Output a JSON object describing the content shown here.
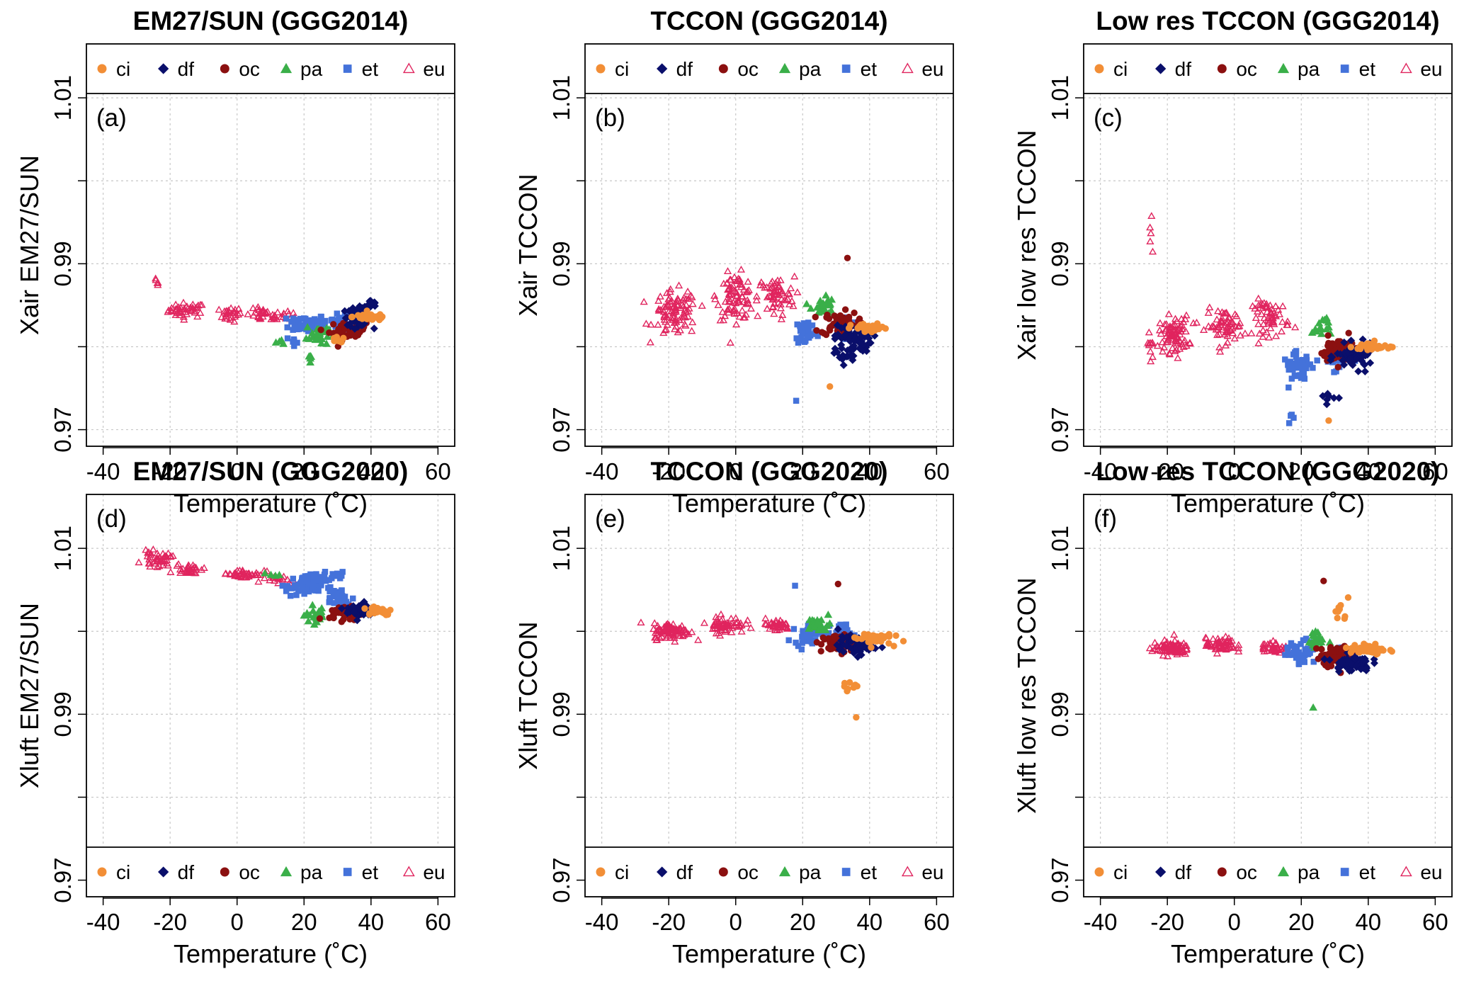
{
  "figure": {
    "legend_entries": [
      {
        "key": "ci",
        "label": "ci",
        "marker": "circle",
        "color": "#F28E36"
      },
      {
        "key": "df",
        "label": "df",
        "marker": "diamond",
        "color": "#0A0F6B"
      },
      {
        "key": "oc",
        "label": "oc",
        "marker": "circle",
        "color": "#8B1010"
      },
      {
        "key": "pa",
        "label": "pa",
        "marker": "triangle",
        "color": "#3AAF49"
      },
      {
        "key": "et",
        "label": "et",
        "marker": "square",
        "color": "#4472DA"
      },
      {
        "key": "eu",
        "label": "eu",
        "marker": "triangle-open",
        "color": "#E0245E"
      }
    ]
  },
  "chart_data": [
    {
      "type": "scatter",
      "title": "EM27/SUN (GGG2014)",
      "panel_label": "(a)",
      "xlabel": "Temperature (˚C)",
      "ylabel": "Xair EM27/SUN",
      "xlim": [
        -45,
        65
      ],
      "ylim": [
        0.968,
        1.0165
      ],
      "xticks": [
        -40,
        -20,
        0,
        20,
        40,
        60
      ],
      "xtick_labels": [
        "-40",
        "-20",
        "0",
        "20",
        "40",
        "60"
      ],
      "yticks": [
        0.97,
        0.99,
        1.01
      ],
      "ytick_labels": [
        "0.97",
        "0.99",
        "1.01"
      ],
      "grid": true,
      "legend_position": "top",
      "series_clusters": {
        "eu": [
          [
            -24,
            0.9876,
            1.5,
            0.0008,
            5
          ],
          [
            -15,
            0.9844,
            5,
            0.0008,
            40
          ],
          [
            -2,
            0.9839,
            3,
            0.0008,
            25
          ],
          [
            8,
            0.9838,
            5,
            0.0007,
            30
          ],
          [
            15,
            0.9838,
            3,
            0.0006,
            10
          ]
        ],
        "et": [
          [
            21,
            0.9828,
            5,
            0.001,
            60
          ],
          [
            17,
            0.9805,
            1,
            0.0008,
            6
          ],
          [
            30,
            0.983,
            5,
            0.0008,
            25
          ]
        ],
        "pa": [
          [
            24,
            0.9815,
            3,
            0.0013,
            25
          ],
          [
            22,
            0.9785,
            1.2,
            0.0008,
            5
          ],
          [
            13,
            0.9805,
            3,
            0.0003,
            4
          ]
        ],
        "oc": [
          [
            33,
            0.9819,
            5,
            0.001,
            40
          ]
        ],
        "df": [
          [
            36,
            0.9836,
            4,
            0.001,
            50
          ],
          [
            40,
            0.985,
            2,
            0.0006,
            15
          ]
        ],
        "ci": [
          [
            40,
            0.9836,
            5,
            0.0004,
            40
          ],
          [
            30,
            0.9807,
            2,
            0.0004,
            8
          ]
        ]
      }
    },
    {
      "type": "scatter",
      "title": "TCCON (GGG2014)",
      "panel_label": "(b)",
      "xlabel": "Temperature (˚C)",
      "ylabel": "Xair TCCON",
      "xlim": [
        -45,
        65
      ],
      "ylim": [
        0.968,
        1.0165
      ],
      "xticks": [
        -40,
        -20,
        0,
        20,
        40,
        60
      ],
      "xtick_labels": [
        "-40",
        "-20",
        "0",
        "20",
        "40",
        "60"
      ],
      "yticks": [
        0.97,
        0.99,
        1.01
      ],
      "ytick_labels": [
        "0.97",
        "0.99",
        "1.01"
      ],
      "grid": true,
      "legend_position": "top",
      "series_clusters": {
        "eu": [
          [
            -18,
            0.984,
            6,
            0.0025,
            90
          ],
          [
            0,
            0.986,
            5,
            0.0025,
            80
          ],
          [
            12,
            0.986,
            5,
            0.0022,
            60
          ]
        ],
        "et": [
          [
            21,
            0.9818,
            3,
            0.0015,
            40
          ],
          [
            33,
            0.9825,
            3,
            0.001,
            20
          ],
          [
            18,
            0.9735,
            0.5,
            0.0003,
            1
          ]
        ],
        "pa": [
          [
            26,
            0.985,
            3,
            0.0012,
            25
          ]
        ],
        "oc": [
          [
            31,
            0.9828,
            5,
            0.0013,
            60
          ],
          [
            33,
            0.9908,
            0.5,
            0.0002,
            1
          ]
        ],
        "df": [
          [
            35,
            0.981,
            5,
            0.0015,
            60
          ],
          [
            33,
            0.979,
            3,
            0.001,
            20
          ]
        ],
        "ci": [
          [
            40,
            0.9822,
            5,
            0.0005,
            40
          ],
          [
            28,
            0.9752,
            0.5,
            0.0002,
            1
          ]
        ]
      }
    },
    {
      "type": "scatter",
      "title": "Low res TCCON (GGG2014)",
      "panel_label": "(c)",
      "xlabel": "Temperature (˚C)",
      "ylabel": "Xair low res TCCON",
      "xlim": [
        -45,
        65
      ],
      "ylim": [
        0.968,
        1.0165
      ],
      "xticks": [
        -40,
        -20,
        0,
        20,
        40,
        60
      ],
      "xtick_labels": [
        "-40",
        "-20",
        "0",
        "20",
        "40",
        "60"
      ],
      "yticks": [
        0.97,
        0.99,
        1.01
      ],
      "ytick_labels": [
        "0.97",
        "0.99",
        "1.01"
      ],
      "grid": true,
      "legend_position": "top",
      "series_clusters": {
        "eu": [
          [
            -25,
            0.993,
            0.5,
            0.003,
            5
          ],
          [
            -25,
            0.98,
            1,
            0.002,
            10
          ],
          [
            -18,
            0.9815,
            4,
            0.002,
            80
          ],
          [
            -3,
            0.9825,
            5,
            0.0018,
            60
          ],
          [
            11,
            0.9835,
            5,
            0.002,
            60
          ]
        ],
        "et": [
          [
            19,
            0.9775,
            4,
            0.0015,
            40
          ],
          [
            17,
            0.9715,
            1,
            0.0006,
            4
          ],
          [
            30,
            0.9785,
            4,
            0.0012,
            25
          ]
        ],
        "pa": [
          [
            26,
            0.9825,
            2.5,
            0.0012,
            15
          ]
        ],
        "oc": [
          [
            31,
            0.9795,
            5,
            0.0015,
            60
          ]
        ],
        "df": [
          [
            36,
            0.9788,
            5,
            0.0013,
            70
          ],
          [
            28,
            0.974,
            2,
            0.0008,
            8
          ]
        ],
        "ci": [
          [
            41,
            0.98,
            5,
            0.0005,
            40
          ],
          [
            28,
            0.971,
            0.5,
            0.0002,
            1
          ]
        ]
      }
    },
    {
      "type": "scatter",
      "title": "EM27/SUN  (GGG2020)",
      "panel_label": "(d)",
      "xlabel": "Temperature (˚C)",
      "ylabel": "Xluft EM27/SUN",
      "xlim": [
        -45,
        65
      ],
      "ylim": [
        0.968,
        1.0165
      ],
      "xticks": [
        -40,
        -20,
        0,
        20,
        40,
        60
      ],
      "xtick_labels": [
        "-40",
        "-20",
        "0",
        "20",
        "40",
        "60"
      ],
      "yticks": [
        0.97,
        0.99,
        1.01
      ],
      "ytick_labels": [
        "0.97",
        "0.99",
        "1.01"
      ],
      "grid": true,
      "legend_position": "bottom",
      "series_clusters": {
        "eu": [
          [
            -24,
            1.0087,
            4,
            0.0008,
            40
          ],
          [
            -14,
            1.0075,
            4,
            0.0006,
            30
          ],
          [
            2,
            1.0069,
            6,
            0.0005,
            40
          ],
          [
            12,
            1.0063,
            4,
            0.0004,
            15
          ]
        ],
        "et": [
          [
            20,
            1.0055,
            5,
            0.0012,
            60
          ],
          [
            26,
            1.0065,
            5,
            0.0006,
            20
          ],
          [
            30,
            1.004,
            4,
            0.001,
            25
          ]
        ],
        "pa": [
          [
            24,
            1.002,
            3,
            0.001,
            25
          ],
          [
            11,
            1.0068,
            2,
            0.0002,
            4
          ]
        ],
        "oc": [
          [
            32,
            1.0022,
            4,
            0.0008,
            40
          ]
        ],
        "df": [
          [
            37,
            1.0025,
            4,
            0.0009,
            50
          ]
        ],
        "ci": [
          [
            42,
            1.0025,
            4,
            0.0005,
            35
          ]
        ]
      }
    },
    {
      "type": "scatter",
      "title": "TCCON  (GGG2020)",
      "panel_label": "(e)",
      "xlabel": "Temperature (˚C)",
      "ylabel": "Xluft TCCON",
      "xlim": [
        -45,
        65
      ],
      "ylim": [
        0.968,
        1.0165
      ],
      "xticks": [
        -40,
        -20,
        0,
        20,
        40,
        60
      ],
      "xtick_labels": [
        "-40",
        "-20",
        "0",
        "20",
        "40",
        "60"
      ],
      "yticks": [
        0.97,
        0.99,
        1.01
      ],
      "ytick_labels": [
        "0.97",
        "0.99",
        "1.01"
      ],
      "grid": true,
      "legend_position": "bottom",
      "series_clusters": {
        "eu": [
          [
            -19,
            1.0,
            5,
            0.0009,
            90
          ],
          [
            -3,
            1.0008,
            5,
            0.0009,
            60
          ],
          [
            12,
            1.0007,
            4,
            0.0007,
            40
          ]
        ],
        "et": [
          [
            22,
            0.9998,
            4,
            0.0012,
            45
          ],
          [
            32,
            1.0,
            3,
            0.0008,
            20
          ],
          [
            18,
            1.0055,
            0.5,
            0.0003,
            1
          ]
        ],
        "pa": [
          [
            25,
            1.0008,
            3,
            0.0008,
            25
          ]
        ],
        "oc": [
          [
            31,
            0.9985,
            5,
            0.001,
            70
          ],
          [
            30,
            1.0057,
            0.5,
            0.0002,
            1
          ]
        ],
        "df": [
          [
            36,
            0.9983,
            5,
            0.001,
            60
          ]
        ],
        "ci": [
          [
            41,
            0.9992,
            5,
            0.0007,
            40
          ],
          [
            33,
            0.9935,
            3,
            0.0006,
            8
          ],
          [
            36,
            0.9895,
            0.5,
            0.0002,
            1
          ]
        ]
      }
    },
    {
      "type": "scatter",
      "title": "Low res TCCON (GGG2020)",
      "panel_label": "(f)",
      "xlabel": "Temperature (˚C)",
      "ylabel": "Xluft low res TCCON",
      "xlim": [
        -45,
        65
      ],
      "ylim": [
        0.968,
        1.0165
      ],
      "xticks": [
        -40,
        -20,
        0,
        20,
        40,
        60
      ],
      "xtick_labels": [
        "-40",
        "-20",
        "0",
        "20",
        "40",
        "60"
      ],
      "yticks": [
        0.97,
        0.99,
        1.01
      ],
      "ytick_labels": [
        "0.97",
        "0.99",
        "1.01"
      ],
      "grid": true,
      "legend_position": "bottom",
      "series_clusters": {
        "eu": [
          [
            -19,
            0.998,
            5,
            0.0008,
            90
          ],
          [
            -4,
            0.9983,
            4,
            0.0008,
            60
          ],
          [
            12,
            0.998,
            4,
            0.0007,
            40
          ]
        ],
        "et": [
          [
            20,
            0.9975,
            4,
            0.0013,
            45
          ],
          [
            32,
            0.9975,
            3,
            0.0007,
            20
          ]
        ],
        "pa": [
          [
            25,
            0.9988,
            2.5,
            0.001,
            25
          ],
          [
            24,
            0.991,
            0.5,
            0.0002,
            1
          ]
        ],
        "oc": [
          [
            30,
            0.997,
            5,
            0.0012,
            60
          ],
          [
            26,
            1.0062,
            0.5,
            0.0002,
            1
          ]
        ],
        "df": [
          [
            35,
            0.9962,
            5,
            0.0009,
            60
          ]
        ],
        "ci": [
          [
            40,
            0.9978,
            5,
            0.0007,
            40
          ],
          [
            32,
            1.002,
            2,
            0.001,
            8
          ],
          [
            34,
            1.004,
            0.5,
            0.0002,
            1
          ]
        ]
      }
    }
  ]
}
